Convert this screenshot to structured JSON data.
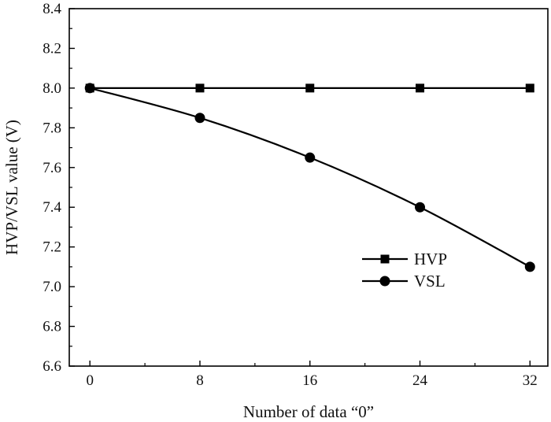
{
  "chart_data": {
    "type": "line",
    "title": "",
    "xlabel": "Number of data “0”",
    "ylabel": "HVP/VSL value (V)",
    "x": [
      0,
      8,
      16,
      24,
      32
    ],
    "x_ticks": [
      "0",
      "8",
      "16",
      "24",
      "32"
    ],
    "y_ticks": [
      "6.6",
      "6.8",
      "7.0",
      "7.2",
      "7.4",
      "7.6",
      "7.8",
      "8.0",
      "8.2",
      "8.4"
    ],
    "xlim": [
      -1.5,
      33.3
    ],
    "ylim": [
      6.6,
      8.4
    ],
    "grid": false,
    "legend_position": "lower-right",
    "series": [
      {
        "name": "HVP",
        "marker": "square",
        "color": "#000000",
        "values": [
          8.0,
          8.0,
          8.0,
          8.0,
          8.0
        ]
      },
      {
        "name": "VSL",
        "marker": "circle",
        "color": "#000000",
        "values": [
          8.0,
          7.85,
          7.65,
          7.4,
          7.1
        ]
      }
    ]
  }
}
